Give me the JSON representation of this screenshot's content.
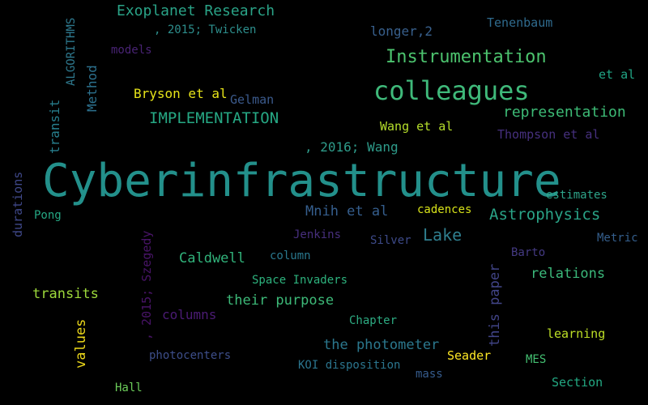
{
  "words": [
    {
      "text": "Cyberinfrastructure",
      "color": "#23908b"
    },
    {
      "text": "colleagues",
      "color": "#3fb97a"
    },
    {
      "text": "Instrumentation",
      "color": "#4cc36e"
    },
    {
      "text": "Exoplanet Research",
      "color": "#2aa387"
    },
    {
      "text": "IMPLEMENTATION",
      "color": "#26a884"
    },
    {
      "text": "representation",
      "color": "#3dbb76"
    },
    {
      "text": "Astrophysics",
      "color": "#2aa387"
    },
    {
      "text": "Lake",
      "color": "#2f7e8e"
    },
    {
      "text": "relations",
      "color": "#3bb97b"
    },
    {
      "text": "the photometer",
      "color": "#2b788e"
    },
    {
      "text": "Caldwell",
      "color": "#31b37b"
    },
    {
      "text": "their purpose",
      "color": "#3db978"
    },
    {
      "text": "transits",
      "color": "#9dd93b"
    },
    {
      "text": "Mnih et al",
      "color": "#355e8d"
    },
    {
      "text": ", 2016; Wang",
      "color": "#2e9b8a"
    },
    {
      "text": "Wang et al",
      "color": "#b5de2b"
    },
    {
      "text": "Bryson et al",
      "color": "#e7e419"
    },
    {
      "text": "Gelman",
      "color": "#3b5a8c"
    },
    {
      "text": "Thompson et al",
      "color": "#46307e"
    },
    {
      "text": "Tenenbaum",
      "color": "#2f6b8e"
    },
    {
      "text": "longer,2",
      "color": "#38608d"
    },
    {
      "text": ", 2015; Twicken",
      "color": "#2d8e8c"
    },
    {
      "text": "models",
      "color": "#482374"
    },
    {
      "text": "et al",
      "color": "#21a585"
    },
    {
      "text": "estimates",
      "color": "#2ea58a"
    },
    {
      "text": "cadences",
      "color": "#d7e219"
    },
    {
      "text": "Pong",
      "color": "#25a884"
    },
    {
      "text": "Jenkins",
      "color": "#472f7d"
    },
    {
      "text": "Silver",
      "color": "#3d4a89"
    },
    {
      "text": "Barto",
      "color": "#443a83"
    },
    {
      "text": "Metric",
      "color": "#355f8d"
    },
    {
      "text": "column",
      "color": "#2a788e"
    },
    {
      "text": "Space Invaders",
      "color": "#2db27d"
    },
    {
      "text": "columns",
      "color": "#4b1b74"
    },
    {
      "text": "Chapter",
      "color": "#2dab82"
    },
    {
      "text": "learning",
      "color": "#bddf26"
    },
    {
      "text": "Seader",
      "color": "#fde725"
    },
    {
      "text": "MES",
      "color": "#43bf71"
    },
    {
      "text": "photocenters",
      "color": "#3d4e8a"
    },
    {
      "text": "KOI disposition",
      "color": "#2b758e"
    },
    {
      "text": "mass",
      "color": "#365c8d"
    },
    {
      "text": "Section",
      "color": "#23a983"
    },
    {
      "text": "Hall",
      "color": "#6ccd5a"
    },
    {
      "text": "ALGORITHMS",
      "color": "#2e798e"
    },
    {
      "text": "Method",
      "color": "#2c718e"
    },
    {
      "text": "transit",
      "color": "#277f8e"
    },
    {
      "text": "durations",
      "color": "#3f4889"
    },
    {
      "text": ", 2015; Szegedy",
      "color": "#481467"
    },
    {
      "text": "values",
      "color": "#ead61a"
    },
    {
      "text": "this paper",
      "color": "#414487"
    }
  ]
}
